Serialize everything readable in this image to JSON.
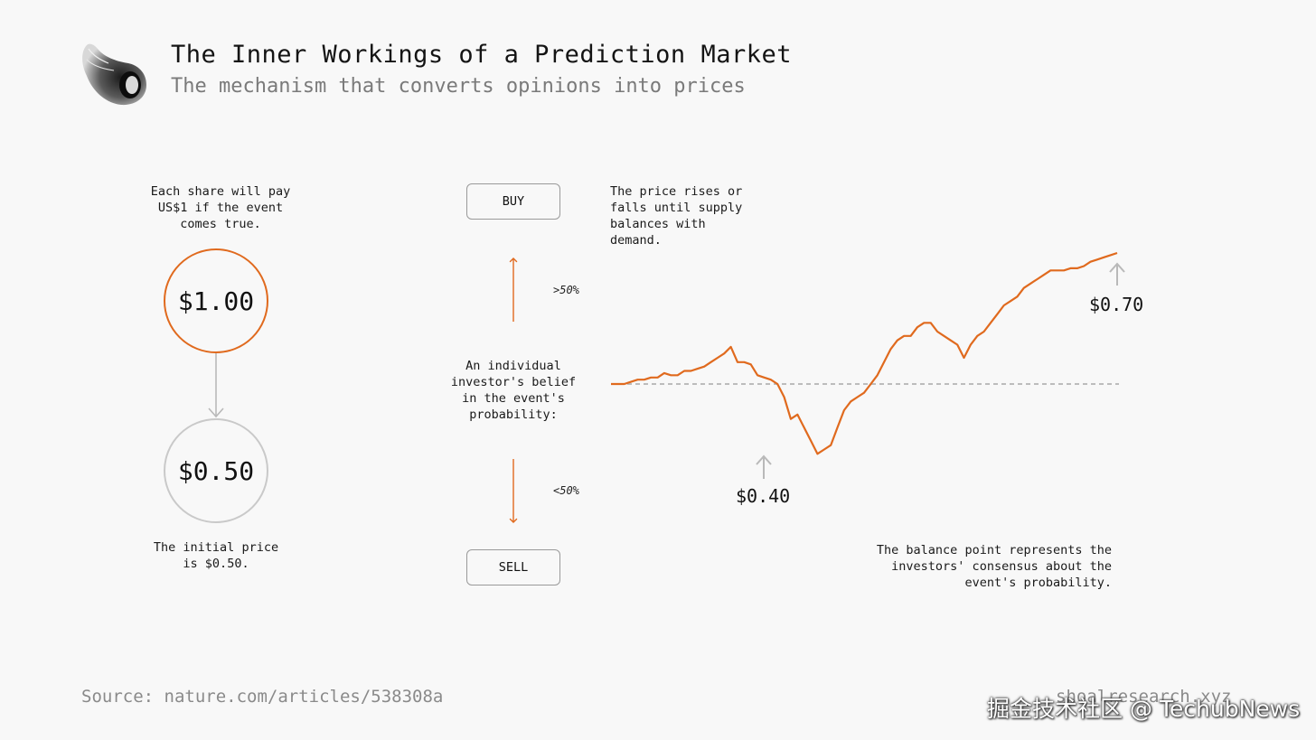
{
  "header": {
    "title": "The Inner Workings of a Prediction Market",
    "subtitle": "The mechanism that converts opinions into prices"
  },
  "left": {
    "payout_note": "Each share will pay\nUS$1 if the event\ncomes true.",
    "top_circle_value": "$1.00",
    "bottom_circle_value": "$0.50",
    "initial_note": "The initial price\nis $0.50."
  },
  "middle": {
    "buy_label": "BUY",
    "sell_label": "SELL",
    "above_threshold": ">50%",
    "below_threshold": "<50%",
    "belief_note": "An individual\ninvestor's belief\nin the event's\nprobability:"
  },
  "right": {
    "price_note": "The price rises or\nfalls until supply\nbalances with\ndemand.",
    "low_label": "$0.40",
    "final_label": "$0.70",
    "balance_note": "The balance point represents the\ninvestors' consensus about the\nevent's probability."
  },
  "footer": {
    "source": "Source: nature.com/articles/538308a",
    "site": "shoalresearch.xyz",
    "watermark": "掘金技术社区 @ TechubNews"
  },
  "colors": {
    "accent": "#e06a1e",
    "neutral_circle": "#c9c9c9",
    "baseline": "#bcbcbc",
    "muted_text": "#8a8a8a"
  },
  "icons": {
    "logo": "shell-logo-icon"
  },
  "chart_data": {
    "type": "line",
    "baseline": 0.5,
    "ylim": [
      0.3,
      0.8
    ],
    "series": [
      {
        "values": [
          0.5,
          0.5,
          0.5,
          0.505,
          0.51,
          0.51,
          0.515,
          0.515,
          0.525,
          0.52,
          0.52,
          0.53,
          0.53,
          0.535,
          0.54,
          0.55,
          0.56,
          0.57,
          0.585,
          0.55,
          0.55,
          0.545,
          0.52,
          0.515,
          0.51,
          0.5,
          0.47,
          0.42,
          0.43,
          0.4,
          0.37,
          0.34,
          0.35,
          0.36,
          0.4,
          0.44,
          0.46,
          0.47,
          0.48,
          0.5,
          0.52,
          0.55,
          0.58,
          0.6,
          0.61,
          0.61,
          0.63,
          0.64,
          0.64,
          0.62,
          0.61,
          0.6,
          0.59,
          0.56,
          0.59,
          0.61,
          0.62,
          0.64,
          0.66,
          0.68,
          0.69,
          0.7,
          0.72,
          0.73,
          0.74,
          0.75,
          0.76,
          0.76,
          0.76,
          0.765,
          0.765,
          0.77,
          0.78,
          0.785,
          0.79,
          0.795,
          0.8
        ]
      }
    ],
    "annotations": [
      {
        "value": 0.4,
        "label": "$0.40"
      },
      {
        "value": 0.7,
        "label": "$0.70"
      }
    ]
  }
}
